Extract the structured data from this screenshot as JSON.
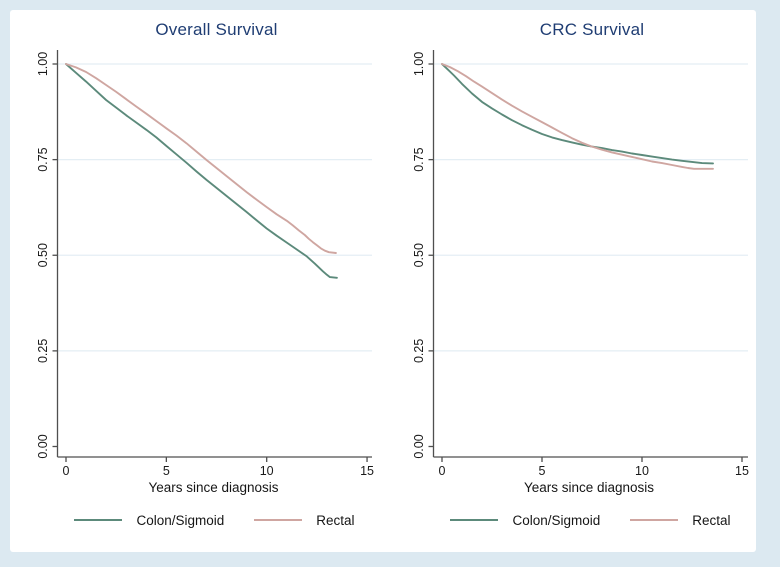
{
  "figure": {
    "background_color": "#dce9f1",
    "canvas_color": "#ffffff",
    "axis_color": "#4f4f4f",
    "gridline_color": "#e4eef4",
    "title_color": "#1f3d73",
    "tick_label_color": "#1a1a1a"
  },
  "chart_data": [
    {
      "type": "line",
      "title": "Overall Survival",
      "xlabel": "Years since diagnosis",
      "ylabel": "",
      "xlim": [
        0,
        15
      ],
      "ylim": [
        0,
        1
      ],
      "grid": "horizontal",
      "legend_position": "bottom",
      "x_ticks": [
        "0",
        "5",
        "10",
        "15"
      ],
      "x_tick_values": [
        0,
        5,
        10,
        15
      ],
      "y_ticks": [
        "0.00",
        "0.25",
        "0.50",
        "0.75",
        "1.00"
      ],
      "y_tick_values": [
        0,
        0.25,
        0.5,
        0.75,
        1
      ],
      "series": [
        {
          "name": "Colon/Sigmoid",
          "color": "#5c8a7b",
          "points": [
            [
              0,
              1.0
            ],
            [
              0.5,
              0.977
            ],
            [
              1,
              0.954
            ],
            [
              1.5,
              0.93
            ],
            [
              2,
              0.906
            ],
            [
              2.5,
              0.886
            ],
            [
              3,
              0.866
            ],
            [
              3.5,
              0.847
            ],
            [
              4,
              0.828
            ],
            [
              4.5,
              0.808
            ],
            [
              5,
              0.786
            ],
            [
              5.5,
              0.764
            ],
            [
              6,
              0.742
            ],
            [
              6.5,
              0.719
            ],
            [
              7,
              0.697
            ],
            [
              7.5,
              0.676
            ],
            [
              8,
              0.655
            ],
            [
              8.5,
              0.634
            ],
            [
              9,
              0.613
            ],
            [
              9.5,
              0.591
            ],
            [
              10,
              0.57
            ],
            [
              10.5,
              0.551
            ],
            [
              11,
              0.533
            ],
            [
              11.5,
              0.515
            ],
            [
              12,
              0.497
            ],
            [
              12.4,
              0.478
            ],
            [
              12.8,
              0.458
            ],
            [
              13.0,
              0.449
            ],
            [
              13.15,
              0.443
            ],
            [
              13.5,
              0.441
            ]
          ]
        },
        {
          "name": "Rectal",
          "color": "#cfa6a1",
          "points": [
            [
              0,
              1.0
            ],
            [
              0.5,
              0.991
            ],
            [
              1,
              0.979
            ],
            [
              1.5,
              0.963
            ],
            [
              2,
              0.945
            ],
            [
              2.5,
              0.927
            ],
            [
              3,
              0.908
            ],
            [
              3.5,
              0.889
            ],
            [
              4,
              0.87
            ],
            [
              4.5,
              0.851
            ],
            [
              5,
              0.832
            ],
            [
              5.5,
              0.813
            ],
            [
              6,
              0.793
            ],
            [
              6.5,
              0.771
            ],
            [
              7,
              0.749
            ],
            [
              7.5,
              0.728
            ],
            [
              8,
              0.707
            ],
            [
              8.5,
              0.686
            ],
            [
              9,
              0.665
            ],
            [
              9.5,
              0.645
            ],
            [
              10,
              0.626
            ],
            [
              10.5,
              0.607
            ],
            [
              11,
              0.59
            ],
            [
              11.3,
              0.578
            ],
            [
              11.6,
              0.565
            ],
            [
              11.9,
              0.553
            ],
            [
              12.1,
              0.543
            ],
            [
              12.3,
              0.534
            ],
            [
              12.5,
              0.526
            ],
            [
              12.7,
              0.518
            ],
            [
              12.9,
              0.512
            ],
            [
              13.1,
              0.508
            ],
            [
              13.45,
              0.506
            ]
          ]
        }
      ]
    },
    {
      "type": "line",
      "title": "CRC Survival",
      "xlabel": "Years since diagnosis",
      "ylabel": "",
      "xlim": [
        0,
        15
      ],
      "ylim": [
        0,
        1
      ],
      "grid": "horizontal",
      "legend_position": "bottom",
      "x_ticks": [
        "0",
        "5",
        "10",
        "15"
      ],
      "x_tick_values": [
        0,
        5,
        10,
        15
      ],
      "y_ticks": [
        "0.00",
        "0.25",
        "0.50",
        "0.75",
        "1.00"
      ],
      "y_tick_values": [
        0,
        0.25,
        0.5,
        0.75,
        1
      ],
      "series": [
        {
          "name": "Colon/Sigmoid",
          "color": "#5c8a7b",
          "points": [
            [
              0,
              1.0
            ],
            [
              0.3,
              0.985
            ],
            [
              0.6,
              0.97
            ],
            [
              1,
              0.948
            ],
            [
              1.5,
              0.923
            ],
            [
              2,
              0.901
            ],
            [
              2.5,
              0.884
            ],
            [
              3,
              0.868
            ],
            [
              3.5,
              0.853
            ],
            [
              4,
              0.84
            ],
            [
              4.5,
              0.828
            ],
            [
              5,
              0.817
            ],
            [
              5.5,
              0.808
            ],
            [
              6,
              0.801
            ],
            [
              6.5,
              0.795
            ],
            [
              7,
              0.789
            ],
            [
              7.5,
              0.784
            ],
            [
              8,
              0.78
            ],
            [
              8.5,
              0.775
            ],
            [
              9,
              0.771
            ],
            [
              9.5,
              0.766
            ],
            [
              10,
              0.762
            ],
            [
              10.5,
              0.758
            ],
            [
              11,
              0.754
            ],
            [
              11.5,
              0.75
            ],
            [
              12,
              0.747
            ],
            [
              12.5,
              0.744
            ],
            [
              13,
              0.741
            ],
            [
              13.55,
              0.74
            ]
          ]
        },
        {
          "name": "Rectal",
          "color": "#cfa6a1",
          "points": [
            [
              0,
              1.0
            ],
            [
              0.4,
              0.992
            ],
            [
              0.8,
              0.981
            ],
            [
              1.2,
              0.968
            ],
            [
              1.6,
              0.954
            ],
            [
              2,
              0.941
            ],
            [
              2.5,
              0.924
            ],
            [
              3,
              0.907
            ],
            [
              3.5,
              0.891
            ],
            [
              4,
              0.876
            ],
            [
              4.5,
              0.862
            ],
            [
              5,
              0.848
            ],
            [
              5.5,
              0.834
            ],
            [
              6,
              0.82
            ],
            [
              6.5,
              0.806
            ],
            [
              7,
              0.794
            ],
            [
              7.5,
              0.784
            ],
            [
              8,
              0.776
            ],
            [
              8.5,
              0.769
            ],
            [
              9,
              0.763
            ],
            [
              9.5,
              0.757
            ],
            [
              10,
              0.751
            ],
            [
              10.5,
              0.745
            ],
            [
              11,
              0.741
            ],
            [
              11.5,
              0.736
            ],
            [
              12,
              0.731
            ],
            [
              12.3,
              0.728
            ],
            [
              12.6,
              0.726
            ],
            [
              13,
              0.726
            ],
            [
              13.55,
              0.726
            ]
          ]
        }
      ]
    }
  ]
}
